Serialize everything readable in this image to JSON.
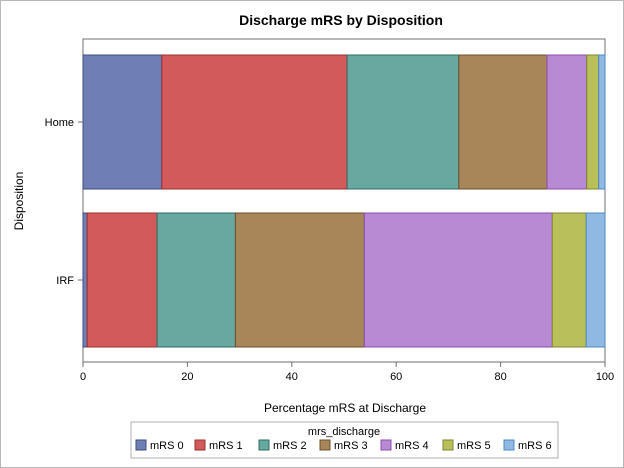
{
  "chart_data": {
    "type": "bar",
    "orientation": "horizontal",
    "stacked": true,
    "title": "Discharge mRS by Disposition",
    "xlabel": "Percentage mRS at Discharge",
    "ylabel": "Disposition",
    "xlim": [
      0,
      100
    ],
    "x_ticks": [
      0,
      20,
      40,
      60,
      80,
      100
    ],
    "categories": [
      "Home",
      "IRF"
    ],
    "series": [
      {
        "name": "mRS 0",
        "values": [
          15.1,
          0.8
        ],
        "color": "#6f7fb5",
        "edge": "#3d4b80"
      },
      {
        "name": "mRS 1",
        "values": [
          35.5,
          13.4
        ],
        "color": "#d35a5a",
        "edge": "#9c2f2f"
      },
      {
        "name": "mRS 2",
        "values": [
          21.4,
          15.0
        ],
        "color": "#67a9a0",
        "edge": "#2f6e65"
      },
      {
        "name": "mRS 3",
        "values": [
          16.9,
          24.7
        ],
        "color": "#a88659",
        "edge": "#6b4f2a"
      },
      {
        "name": "mRS 4",
        "values": [
          7.6,
          36.0
        ],
        "color": "#b98ad4",
        "edge": "#8a4fb0"
      },
      {
        "name": "mRS 5",
        "values": [
          2.3,
          6.5
        ],
        "color": "#b9c05a",
        "edge": "#7f8630"
      },
      {
        "name": "mRS 6",
        "values": [
          1.2,
          3.6
        ],
        "color": "#8fb9e3",
        "edge": "#4f88c4"
      }
    ],
    "legend": {
      "title": "mrs_discharge",
      "position": "bottom"
    }
  }
}
